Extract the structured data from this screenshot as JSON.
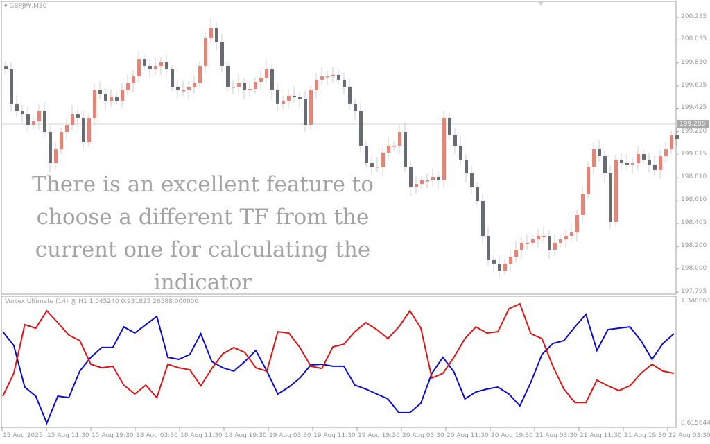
{
  "window": {
    "symbol_label": "GBPJPY,M30"
  },
  "overlay_text": "There is an excellent feature to choose a different TF from the current one for calculating the indicator",
  "colors": {
    "bull": "#e0877c",
    "bear": "#686b70",
    "wick": "#c9cdd1",
    "vi_plus": "#0a0ad2",
    "vi_minus": "#e01414",
    "axis": "#a0a0a0"
  },
  "chart_data": [
    {
      "type": "candlestick",
      "title": "GBPJPY,M30",
      "ylim": [
        197.795,
        200.235
      ],
      "y_ticks": [
        "200.235",
        "200.035",
        "199.830",
        "199.625",
        "199.425",
        "199.220",
        "199.015",
        "198.810",
        "198.610",
        "198.405",
        "198.200",
        "198.000",
        "197.795"
      ],
      "current_price": "199.288",
      "x_ticks": [
        "15 Aug 2025",
        "15 Aug 11:30",
        "15 Aug 19:30",
        "18 Aug 03:30",
        "18 Aug 11:30",
        "18 Aug 19:30",
        "19 Aug 03:30",
        "19 Aug 11:30",
        "19 Aug 19:30",
        "20 Aug 03:30",
        "20 Aug 11:30",
        "20 Aug 19:30",
        "21 Aug 03:30",
        "21 Aug 11:30",
        "21 Aug 19:30",
        "22 Aug 03:30"
      ],
      "closes": [
        199.773,
        199.465,
        199.403,
        199.372,
        199.28,
        199.311,
        199.403,
        199.218,
        198.941,
        199.064,
        199.218,
        199.28,
        199.372,
        199.342,
        199.126,
        199.342,
        199.588,
        199.557,
        199.496,
        199.526,
        199.496,
        199.588,
        199.65,
        199.711,
        199.865,
        199.804,
        199.773,
        199.804,
        199.835,
        199.773,
        199.619,
        199.588,
        199.588,
        199.619,
        199.65,
        199.804,
        200.05,
        200.143,
        200.019,
        199.804,
        199.619,
        199.619,
        199.65,
        199.588,
        199.6,
        199.662,
        199.699,
        199.773,
        199.588,
        199.465,
        199.496,
        199.539,
        199.526,
        199.514,
        199.28,
        199.588,
        199.681,
        199.711,
        199.711,
        199.724,
        199.681,
        199.619,
        199.465,
        199.403,
        199.095,
        198.941,
        198.91,
        198.91,
        199.034,
        199.095,
        199.095,
        199.218,
        198.91,
        198.726,
        198.756,
        198.787,
        198.787,
        198.818,
        198.787,
        199.342,
        199.188,
        199.095,
        198.972,
        198.849,
        198.726,
        198.602,
        198.294,
        198.079,
        198.048,
        197.986,
        198.048,
        198.109,
        198.171,
        198.233,
        198.233,
        198.263,
        198.294,
        198.294,
        198.171,
        198.233,
        198.263,
        198.294,
        198.325,
        198.479,
        198.664,
        198.91,
        199.064,
        199.003,
        198.849,
        198.417,
        198.972,
        198.941,
        198.923,
        198.941,
        199.021,
        198.972,
        198.923,
        198.88,
        199.003,
        199.064,
        199.188,
        199.157
      ]
    },
    {
      "type": "line",
      "title": "Vortex Ultimate (14)  @ H1 1.045240 0.931825 26588.000000",
      "ylim": [
        0.615644,
        1.348661
      ],
      "y_ticks": [
        "1.348661",
        "0.615644"
      ],
      "series": [
        {
          "color": "#0a0ad2",
          "values": [
            1.167,
            1.085,
            0.838,
            0.784,
            0.624,
            0.784,
            0.776,
            0.933,
            1.015,
            1.073,
            1.073,
            1.196,
            1.159,
            1.209,
            1.258,
            1.015,
            1.003,
            1.032,
            1.155,
            0.99,
            0.953,
            0.933,
            0.99,
            1.056,
            0.933,
            0.797,
            0.838,
            0.892,
            0.97,
            0.974,
            0.962,
            0.962,
            0.85,
            0.826,
            0.797,
            0.768,
            0.686,
            0.686,
            0.743,
            0.92,
            1.015,
            0.929,
            0.768,
            0.809,
            0.826,
            0.838,
            0.797,
            0.727,
            0.867,
            1.032,
            1.097,
            1.114,
            1.196,
            1.27,
            1.056,
            1.18,
            1.188,
            1.196,
            1.114,
            1.003,
            1.097,
            1.155
          ]
        },
        {
          "color": "#e01414",
          "values": [
            0.784,
            0.92,
            1.209,
            1.188,
            1.291,
            1.221,
            1.147,
            1.114,
            0.974,
            0.953,
            0.962,
            0.85,
            0.797,
            0.85,
            0.776,
            0.974,
            0.953,
            0.941,
            0.846,
            0.949,
            1.036,
            1.073,
            1.044,
            0.953,
            0.933,
            1.167,
            1.159,
            1.073,
            0.962,
            0.949,
            1.077,
            1.093,
            1.167,
            1.221,
            1.18,
            1.126,
            1.196,
            1.291,
            1.188,
            0.892,
            0.92,
            1.015,
            1.126,
            1.196,
            1.159,
            1.167,
            1.303,
            1.332,
            1.155,
            1.126,
            0.962,
            0.826,
            0.747,
            0.747,
            0.879,
            0.846,
            0.817,
            0.846,
            0.92,
            0.974,
            0.933,
            0.92
          ]
        }
      ]
    }
  ]
}
